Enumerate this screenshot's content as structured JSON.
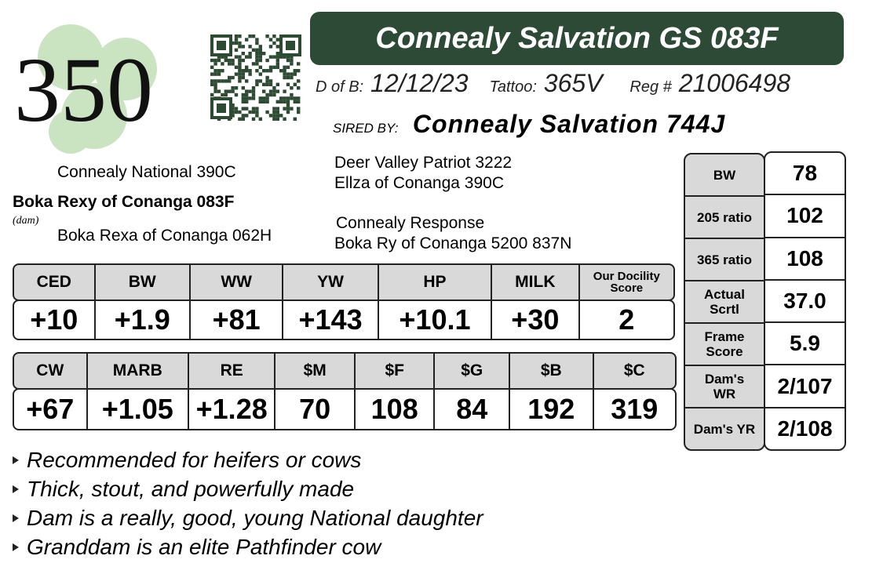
{
  "lot": "350",
  "title": "Connealy Salvation GS 083F",
  "info": {
    "dob_label": "D of B:",
    "dob": "12/12/23",
    "tattoo_label": "Tattoo:",
    "tattoo": "365V",
    "reg_label": "Reg #",
    "reg": "21006498"
  },
  "sire": {
    "label": "SIRED BY:",
    "name": "Connealy Salvation 744J"
  },
  "pedigree": {
    "sire_sire": "Deer Valley Patriot 3222",
    "sire_dam": "Ellza of Conanga 390C",
    "dam_sire": "Connealy National 390C",
    "dam": "Boka Rexy of Conanga 083F",
    "dam_label": "(dam)",
    "dam_dam": "Boka Rexa of Conanga 062H",
    "dam_dam_sire": "Connealy Response",
    "dam_dam_dam": "Boka Ry of Conanga 5200 837N"
  },
  "epd1": {
    "headers": [
      "CED",
      "BW",
      "WW",
      "YW",
      "HP",
      "MILK",
      "Our Docility Score"
    ],
    "values": [
      "+10",
      "+1.9",
      "+81",
      "+143",
      "+10.1",
      "+30",
      "2"
    ]
  },
  "epd2": {
    "headers": [
      "CW",
      "MARB",
      "RE",
      "$M",
      "$F",
      "$G",
      "$B",
      "$C"
    ],
    "values": [
      "+67",
      "+1.05",
      "+1.28",
      "70",
      "108",
      "84",
      "192",
      "319"
    ]
  },
  "stats": {
    "rows": [
      [
        "BW",
        "78"
      ],
      [
        "205 ratio",
        "102"
      ],
      [
        "365 ratio",
        "108"
      ],
      [
        "Actual Scrtl",
        "37.0"
      ],
      [
        "Frame Score",
        "5.9"
      ],
      [
        "Dam's WR",
        "2/107"
      ],
      [
        "Dam's YR",
        "2/108"
      ]
    ]
  },
  "bullets": [
    "Recommended for heifers or cows",
    "Thick, stout, and powerfully made",
    "Dam is a really, good, young National daughter",
    "Granddam is an elite Pathfinder cow"
  ]
}
